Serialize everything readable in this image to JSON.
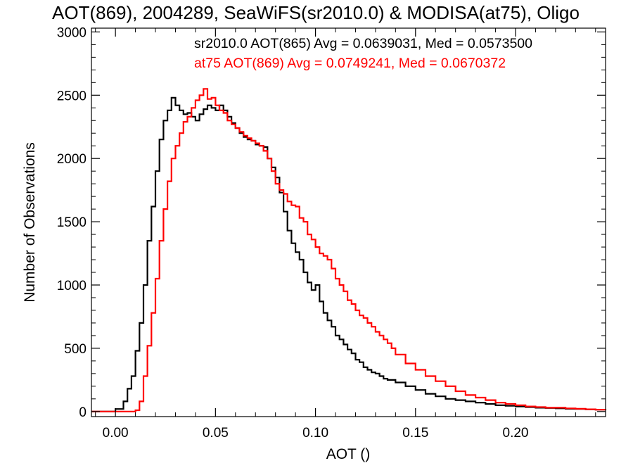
{
  "chart_data": {
    "type": "line",
    "step": true,
    "title": "AOT(869), 2004289, SeaWiFS(sr2010.0) & MODISA(at75), Oligo",
    "xlabel": "AOT ()",
    "ylabel": "Number of Observations",
    "xlim": [
      -0.012,
      0.245
    ],
    "ylim": [
      -40,
      3030
    ],
    "x_ticks": [
      0.0,
      0.05,
      0.1,
      0.15,
      0.2
    ],
    "x_tick_labels": [
      "0.00",
      "0.05",
      "0.10",
      "0.15",
      "0.20"
    ],
    "y_ticks": [
      0,
      500,
      1000,
      1500,
      2000,
      2500,
      3000
    ],
    "y_tick_labels": [
      "0",
      "500",
      "1000",
      "1500",
      "2000",
      "2500",
      "3000"
    ],
    "grid": false,
    "legend_position": "top-right",
    "series": [
      {
        "name": "sr2010.0 AOT(865) Avg = 0.0639031, Med = 0.0573500",
        "color": "#000000",
        "x": [
          -0.012,
          0.0,
          0.004,
          0.006,
          0.008,
          0.01,
          0.012,
          0.014,
          0.016,
          0.018,
          0.02,
          0.022,
          0.024,
          0.026,
          0.028,
          0.03,
          0.032,
          0.034,
          0.036,
          0.038,
          0.04,
          0.042,
          0.044,
          0.046,
          0.048,
          0.05,
          0.052,
          0.054,
          0.056,
          0.058,
          0.06,
          0.062,
          0.064,
          0.066,
          0.068,
          0.07,
          0.072,
          0.074,
          0.076,
          0.078,
          0.08,
          0.082,
          0.084,
          0.086,
          0.088,
          0.09,
          0.092,
          0.094,
          0.096,
          0.098,
          0.1,
          0.102,
          0.104,
          0.106,
          0.108,
          0.11,
          0.112,
          0.114,
          0.116,
          0.118,
          0.12,
          0.122,
          0.124,
          0.126,
          0.128,
          0.13,
          0.132,
          0.134,
          0.136,
          0.14,
          0.145,
          0.15,
          0.155,
          0.16,
          0.165,
          0.17,
          0.175,
          0.18,
          0.185,
          0.19,
          0.195,
          0.2,
          0.205,
          0.21,
          0.215,
          0.22,
          0.225,
          0.23,
          0.235,
          0.24,
          0.245
        ],
        "values": [
          0,
          20,
          80,
          180,
          280,
          480,
          700,
          1000,
          1350,
          1620,
          1900,
          2150,
          2300,
          2380,
          2480,
          2420,
          2380,
          2350,
          2360,
          2330,
          2300,
          2350,
          2390,
          2420,
          2400,
          2380,
          2420,
          2380,
          2330,
          2280,
          2240,
          2200,
          2170,
          2150,
          2140,
          2110,
          2100,
          2090,
          2000,
          1930,
          1850,
          1730,
          1580,
          1430,
          1330,
          1260,
          1200,
          1100,
          1020,
          960,
          1000,
          870,
          780,
          720,
          670,
          600,
          570,
          530,
          490,
          460,
          410,
          390,
          350,
          330,
          310,
          300,
          280,
          260,
          250,
          230,
          200,
          170,
          140,
          120,
          100,
          90,
          80,
          70,
          60,
          50,
          45,
          40,
          35,
          30,
          28,
          25,
          22,
          20,
          18,
          15,
          15
        ]
      },
      {
        "name": "at75 AOT(869) Avg = 0.0749241, Med = 0.0670372",
        "color": "#ff0000",
        "x": [
          -0.012,
          0.0,
          0.01,
          0.012,
          0.014,
          0.016,
          0.018,
          0.02,
          0.022,
          0.024,
          0.026,
          0.028,
          0.03,
          0.032,
          0.034,
          0.036,
          0.038,
          0.04,
          0.042,
          0.044,
          0.046,
          0.048,
          0.05,
          0.052,
          0.054,
          0.056,
          0.058,
          0.06,
          0.062,
          0.064,
          0.066,
          0.068,
          0.07,
          0.072,
          0.074,
          0.076,
          0.078,
          0.08,
          0.082,
          0.084,
          0.086,
          0.088,
          0.09,
          0.092,
          0.094,
          0.096,
          0.098,
          0.1,
          0.102,
          0.104,
          0.106,
          0.108,
          0.11,
          0.112,
          0.114,
          0.116,
          0.118,
          0.12,
          0.122,
          0.124,
          0.126,
          0.128,
          0.13,
          0.132,
          0.134,
          0.136,
          0.138,
          0.14,
          0.145,
          0.15,
          0.155,
          0.16,
          0.165,
          0.17,
          0.175,
          0.18,
          0.185,
          0.19,
          0.195,
          0.2,
          0.205,
          0.21,
          0.215,
          0.22,
          0.225,
          0.23,
          0.235,
          0.24,
          0.245
        ],
        "values": [
          0,
          0,
          10,
          80,
          280,
          520,
          780,
          1050,
          1350,
          1600,
          1820,
          2000,
          2100,
          2200,
          2290,
          2330,
          2400,
          2460,
          2500,
          2550,
          2470,
          2480,
          2420,
          2380,
          2360,
          2300,
          2270,
          2240,
          2210,
          2180,
          2160,
          2140,
          2120,
          2100,
          2060,
          2000,
          1900,
          1800,
          1750,
          1720,
          1660,
          1630,
          1620,
          1530,
          1500,
          1400,
          1360,
          1300,
          1250,
          1230,
          1200,
          1130,
          1050,
          1000,
          950,
          880,
          850,
          800,
          760,
          740,
          700,
          670,
          630,
          600,
          570,
          540,
          500,
          450,
          380,
          330,
          280,
          240,
          200,
          160,
          130,
          110,
          90,
          70,
          60,
          50,
          40,
          35,
          30,
          30,
          25,
          22,
          18,
          15,
          12
        ]
      }
    ]
  }
}
